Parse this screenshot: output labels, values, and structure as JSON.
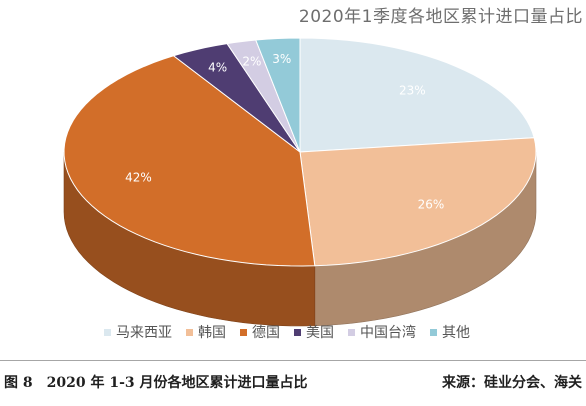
{
  "chart_data": {
    "type": "pie",
    "title": "2020年1季度各地区累计进口量占比",
    "categories": [
      "马来西亚",
      "韩国",
      "德国",
      "美国",
      "中国台湾",
      "其他"
    ],
    "values": [
      23,
      26,
      42,
      4,
      2,
      3
    ],
    "value_labels": [
      "23%",
      "26%",
      "42%",
      "4%",
      "2%",
      "3%"
    ],
    "colors": [
      "#dbe8ef",
      "#f2bf98",
      "#d26e29",
      "#4f3d72",
      "#d3cde3",
      "#93cad8"
    ],
    "legend_placement": "bottom",
    "style": "3d"
  },
  "caption": "图 8　2020 年 1-3 月份各地区累计进口量占比",
  "source": "来源：硅业分会、海关"
}
